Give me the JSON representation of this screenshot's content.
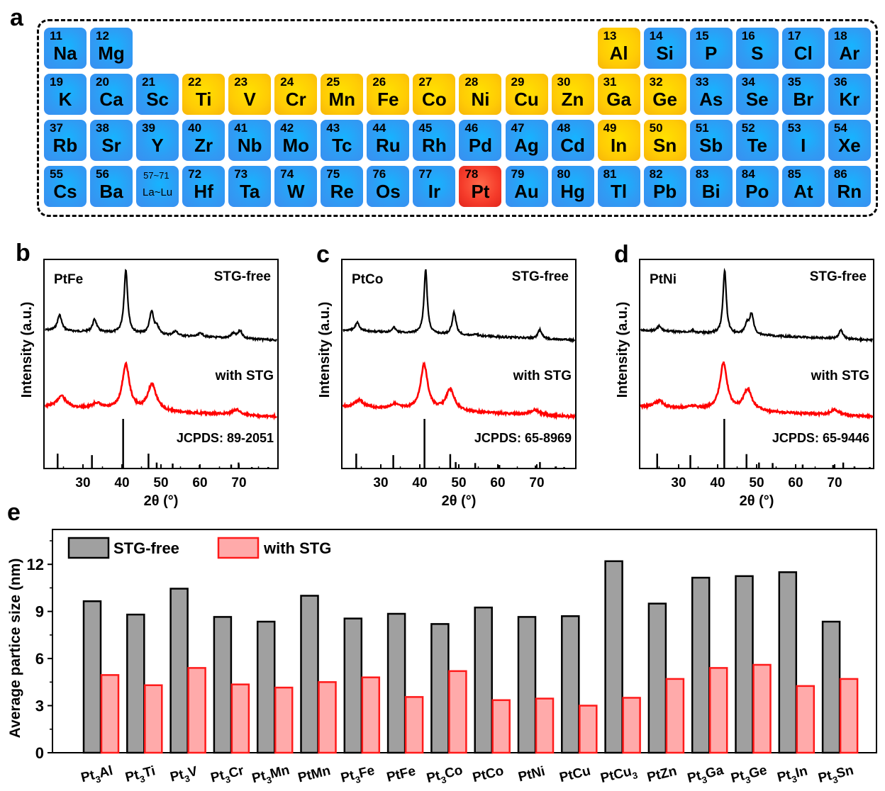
{
  "panels": {
    "a": "a",
    "b": "b",
    "c": "c",
    "d": "d",
    "e": "e"
  },
  "periodic_table": {
    "elements": [
      {
        "n": "11",
        "s": "Na",
        "c": "blue",
        "r": 0,
        "col": 0
      },
      {
        "n": "12",
        "s": "Mg",
        "c": "blue",
        "r": 0,
        "col": 1
      },
      {
        "n": "13",
        "s": "Al",
        "c": "gold",
        "r": 0,
        "col": 12
      },
      {
        "n": "14",
        "s": "Si",
        "c": "blue",
        "r": 0,
        "col": 13
      },
      {
        "n": "15",
        "s": "P",
        "c": "blue",
        "r": 0,
        "col": 14
      },
      {
        "n": "16",
        "s": "S",
        "c": "blue",
        "r": 0,
        "col": 15
      },
      {
        "n": "17",
        "s": "Cl",
        "c": "blue",
        "r": 0,
        "col": 16
      },
      {
        "n": "18",
        "s": "Ar",
        "c": "blue",
        "r": 0,
        "col": 17
      },
      {
        "n": "19",
        "s": "K",
        "c": "blue",
        "r": 1,
        "col": 0
      },
      {
        "n": "20",
        "s": "Ca",
        "c": "blue",
        "r": 1,
        "col": 1
      },
      {
        "n": "21",
        "s": "Sc",
        "c": "blue",
        "r": 1,
        "col": 2
      },
      {
        "n": "22",
        "s": "Ti",
        "c": "gold",
        "r": 1,
        "col": 3
      },
      {
        "n": "23",
        "s": "V",
        "c": "gold",
        "r": 1,
        "col": 4
      },
      {
        "n": "24",
        "s": "Cr",
        "c": "gold",
        "r": 1,
        "col": 5
      },
      {
        "n": "25",
        "s": "Mn",
        "c": "gold",
        "r": 1,
        "col": 6
      },
      {
        "n": "26",
        "s": "Fe",
        "c": "gold",
        "r": 1,
        "col": 7
      },
      {
        "n": "27",
        "s": "Co",
        "c": "gold",
        "r": 1,
        "col": 8
      },
      {
        "n": "28",
        "s": "Ni",
        "c": "gold",
        "r": 1,
        "col": 9
      },
      {
        "n": "29",
        "s": "Cu",
        "c": "gold",
        "r": 1,
        "col": 10
      },
      {
        "n": "30",
        "s": "Zn",
        "c": "gold",
        "r": 1,
        "col": 11
      },
      {
        "n": "31",
        "s": "Ga",
        "c": "gold",
        "r": 1,
        "col": 12
      },
      {
        "n": "32",
        "s": "Ge",
        "c": "gold",
        "r": 1,
        "col": 13
      },
      {
        "n": "33",
        "s": "As",
        "c": "blue",
        "r": 1,
        "col": 14
      },
      {
        "n": "34",
        "s": "Se",
        "c": "blue",
        "r": 1,
        "col": 15
      },
      {
        "n": "35",
        "s": "Br",
        "c": "blue",
        "r": 1,
        "col": 16
      },
      {
        "n": "36",
        "s": "Kr",
        "c": "blue",
        "r": 1,
        "col": 17
      },
      {
        "n": "37",
        "s": "Rb",
        "c": "blue",
        "r": 2,
        "col": 0
      },
      {
        "n": "38",
        "s": "Sr",
        "c": "blue",
        "r": 2,
        "col": 1
      },
      {
        "n": "39",
        "s": "Y",
        "c": "blue",
        "r": 2,
        "col": 2
      },
      {
        "n": "40",
        "s": "Zr",
        "c": "blue",
        "r": 2,
        "col": 3
      },
      {
        "n": "41",
        "s": "Nb",
        "c": "blue",
        "r": 2,
        "col": 4
      },
      {
        "n": "42",
        "s": "Mo",
        "c": "blue",
        "r": 2,
        "col": 5
      },
      {
        "n": "43",
        "s": "Tc",
        "c": "blue",
        "r": 2,
        "col": 6
      },
      {
        "n": "44",
        "s": "Ru",
        "c": "blue",
        "r": 2,
        "col": 7
      },
      {
        "n": "45",
        "s": "Rh",
        "c": "blue",
        "r": 2,
        "col": 8
      },
      {
        "n": "46",
        "s": "Pd",
        "c": "blue",
        "r": 2,
        "col": 9
      },
      {
        "n": "47",
        "s": "Ag",
        "c": "blue",
        "r": 2,
        "col": 10
      },
      {
        "n": "48",
        "s": "Cd",
        "c": "blue",
        "r": 2,
        "col": 11
      },
      {
        "n": "49",
        "s": "In",
        "c": "gold",
        "r": 2,
        "col": 12
      },
      {
        "n": "50",
        "s": "Sn",
        "c": "gold",
        "r": 2,
        "col": 13
      },
      {
        "n": "51",
        "s": "Sb",
        "c": "blue",
        "r": 2,
        "col": 14
      },
      {
        "n": "52",
        "s": "Te",
        "c": "blue",
        "r": 2,
        "col": 15
      },
      {
        "n": "53",
        "s": "I",
        "c": "blue",
        "r": 2,
        "col": 16
      },
      {
        "n": "54",
        "s": "Xe",
        "c": "blue",
        "r": 2,
        "col": 17
      },
      {
        "n": "55",
        "s": "Cs",
        "c": "blue",
        "r": 3,
        "col": 0
      },
      {
        "n": "56",
        "s": "Ba",
        "c": "blue",
        "r": 3,
        "col": 1
      },
      {
        "n": "57~71",
        "s": "La~Lu",
        "c": "blue",
        "r": 3,
        "col": 2,
        "small": true
      },
      {
        "n": "72",
        "s": "Hf",
        "c": "blue",
        "r": 3,
        "col": 3
      },
      {
        "n": "73",
        "s": "Ta",
        "c": "blue",
        "r": 3,
        "col": 4
      },
      {
        "n": "74",
        "s": "W",
        "c": "blue",
        "r": 3,
        "col": 5
      },
      {
        "n": "75",
        "s": "Re",
        "c": "blue",
        "r": 3,
        "col": 6
      },
      {
        "n": "76",
        "s": "Os",
        "c": "blue",
        "r": 3,
        "col": 7
      },
      {
        "n": "77",
        "s": "Ir",
        "c": "blue",
        "r": 3,
        "col": 8
      },
      {
        "n": "78",
        "s": "Pt",
        "c": "red",
        "r": 3,
        "col": 9
      },
      {
        "n": "79",
        "s": "Au",
        "c": "blue",
        "r": 3,
        "col": 10
      },
      {
        "n": "80",
        "s": "Hg",
        "c": "blue",
        "r": 3,
        "col": 11
      },
      {
        "n": "81",
        "s": "Tl",
        "c": "blue",
        "r": 3,
        "col": 12
      },
      {
        "n": "82",
        "s": "Pb",
        "c": "blue",
        "r": 3,
        "col": 13
      },
      {
        "n": "83",
        "s": "Bi",
        "c": "blue",
        "r": 3,
        "col": 14
      },
      {
        "n": "84",
        "s": "Po",
        "c": "blue",
        "r": 3,
        "col": 15
      },
      {
        "n": "85",
        "s": "At",
        "c": "blue",
        "r": 3,
        "col": 16
      },
      {
        "n": "86",
        "s": "Rn",
        "c": "blue",
        "r": 3,
        "col": 17
      }
    ]
  },
  "colors": {
    "stg_free_line": "#000000",
    "with_stg_line": "#ff0000",
    "bar_gray": "#a0a0a0",
    "bar_pink": "#ffaaaa",
    "bar_red_edge": "#ff1a1a"
  },
  "chart_data": [
    {
      "panel": "b",
      "type": "line",
      "sample": "PtFe",
      "xlabel": "2θ (°)",
      "ylabel": "Intensity (a.u.)",
      "xlim": [
        20,
        80
      ],
      "xticks": [
        30,
        40,
        50,
        60,
        70
      ],
      "series": [
        {
          "name": "STG-free",
          "peaks": [
            [
              24,
              0.25
            ],
            [
              33,
              0.2
            ],
            [
              41,
              1.0
            ],
            [
              47.6,
              0.35
            ],
            [
              49,
              0.1
            ],
            [
              53.7,
              0.07
            ],
            [
              60.2,
              0.06
            ],
            [
              68.5,
              0.07
            ],
            [
              70.3,
              0.12
            ]
          ]
        },
        {
          "name": "with STG",
          "peaks": [
            [
              24.5,
              0.22
            ],
            [
              33.5,
              0.1
            ],
            [
              41,
              0.85
            ],
            [
              47.7,
              0.5
            ],
            [
              69.3,
              0.1
            ]
          ]
        }
      ],
      "reference": {
        "label": "JCPDS: 89-2051",
        "sticks": [
          [
            23.5,
            0.3
          ],
          [
            32.3,
            0.27
          ],
          [
            40.3,
            1.0
          ],
          [
            46.8,
            0.3
          ],
          [
            48.9,
            0.12
          ],
          [
            53,
            0.1
          ],
          [
            59.9,
            0.07
          ],
          [
            68,
            0.08
          ],
          [
            69.9,
            0.12
          ],
          [
            73.3,
            0.03
          ],
          [
            77.5,
            0.03
          ]
        ]
      },
      "labels": {
        "stg_free": "STG-free",
        "with_stg": "with STG"
      }
    },
    {
      "panel": "c",
      "type": "line",
      "sample": "PtCo",
      "xlabel": "2θ (°)",
      "ylabel": "Intensity (a.u.)",
      "xlim": [
        20,
        80
      ],
      "xticks": [
        30,
        40,
        50,
        60,
        70
      ],
      "series": [
        {
          "name": "STG-free",
          "peaks": [
            [
              24,
              0.14
            ],
            [
              33.3,
              0.08
            ],
            [
              41.5,
              1.0
            ],
            [
              48.8,
              0.35
            ],
            [
              54.3,
              0.03
            ],
            [
              70.8,
              0.14
            ]
          ]
        },
        {
          "name": "with STG",
          "peaks": [
            [
              24.5,
              0.14
            ],
            [
              33.5,
              0.08
            ],
            [
              41.1,
              0.85
            ],
            [
              47.8,
              0.4
            ],
            [
              69.5,
              0.1
            ]
          ]
        }
      ],
      "reference": {
        "label": "JCPDS: 65-8969",
        "sticks": [
          [
            23.7,
            0.3
          ],
          [
            33.2,
            0.27
          ],
          [
            41.2,
            1.0
          ],
          [
            47.8,
            0.29
          ],
          [
            49.2,
            0.13
          ],
          [
            54.2,
            0.11
          ],
          [
            60.4,
            0.07
          ],
          [
            69.7,
            0.06
          ],
          [
            70.8,
            0.13
          ],
          [
            74.8,
            0.04
          ],
          [
            77,
            0.03
          ]
        ]
      },
      "labels": {
        "stg_free": "STG-free",
        "with_stg": "with STG"
      }
    },
    {
      "panel": "d",
      "type": "line",
      "sample": "PtNi",
      "xlabel": "2θ (°)",
      "ylabel": "Intensity (a.u.)",
      "xlim": [
        20,
        80
      ],
      "xticks": [
        30,
        40,
        50,
        60,
        70
      ],
      "series": [
        {
          "name": "STG-free",
          "peaks": [
            [
              25,
              0.08
            ],
            [
              33.5,
              0.03
            ],
            [
              41.8,
              1.0
            ],
            [
              47.5,
              0.15
            ],
            [
              48.7,
              0.32
            ],
            [
              71.6,
              0.14
            ]
          ]
        },
        {
          "name": "with STG",
          "peaks": [
            [
              25,
              0.13
            ],
            [
              33.5,
              0.05
            ],
            [
              41.5,
              0.88
            ],
            [
              47.7,
              0.4
            ],
            [
              70,
              0.1
            ]
          ]
        }
      ],
      "reference": {
        "label": "JCPDS: 65-9446",
        "sticks": [
          [
            24.5,
            0.3
          ],
          [
            33,
            0.27
          ],
          [
            41.7,
            1.0
          ],
          [
            47.4,
            0.29
          ],
          [
            50.6,
            0.12
          ],
          [
            54.1,
            0.11
          ],
          [
            61.8,
            0.08
          ],
          [
            69.6,
            0.07
          ],
          [
            72.2,
            0.12
          ],
          [
            75.1,
            0.04
          ],
          [
            79,
            0.03
          ]
        ]
      },
      "labels": {
        "stg_free": "STG-free",
        "with_stg": "with STG"
      }
    },
    {
      "panel": "e",
      "type": "bar",
      "ylabel": "Average partice size (nm)",
      "ylim": [
        0,
        14.2
      ],
      "yticks": [
        0,
        3,
        6,
        9,
        12
      ],
      "categories": [
        {
          "base": "Pt",
          "sub": "3",
          "tail": "Al"
        },
        {
          "base": "Pt",
          "sub": "3",
          "tail": "Ti"
        },
        {
          "base": "Pt",
          "sub": "3",
          "tail": "V"
        },
        {
          "base": "Pt",
          "sub": "3",
          "tail": "Cr"
        },
        {
          "base": "Pt",
          "sub": "3",
          "tail": "Mn"
        },
        {
          "base": "PtMn",
          "sub": "",
          "tail": ""
        },
        {
          "base": "Pt",
          "sub": "3",
          "tail": "Fe"
        },
        {
          "base": "PtFe",
          "sub": "",
          "tail": ""
        },
        {
          "base": "Pt",
          "sub": "3",
          "tail": "Co"
        },
        {
          "base": "PtCo",
          "sub": "",
          "tail": ""
        },
        {
          "base": "PtNi",
          "sub": "",
          "tail": ""
        },
        {
          "base": "PtCu",
          "sub": "",
          "tail": ""
        },
        {
          "base": "PtCu",
          "sub": "3",
          "tail": ""
        },
        {
          "base": "PtZn",
          "sub": "",
          "tail": ""
        },
        {
          "base": "Pt",
          "sub": "3",
          "tail": "Ga"
        },
        {
          "base": "Pt",
          "sub": "3",
          "tail": "Ge"
        },
        {
          "base": "Pt",
          "sub": "3",
          "tail": "In"
        },
        {
          "base": "Pt",
          "sub": "3",
          "tail": "Sn"
        }
      ],
      "series": [
        {
          "name": "STG-free",
          "values": [
            9.65,
            8.8,
            10.45,
            8.65,
            8.35,
            10.0,
            8.55,
            8.85,
            8.2,
            9.25,
            8.65,
            8.7,
            12.2,
            9.5,
            11.15,
            11.25,
            11.5,
            8.35
          ]
        },
        {
          "name": "with STG",
          "values": [
            4.95,
            4.3,
            5.4,
            4.35,
            4.15,
            4.5,
            4.8,
            3.55,
            5.2,
            3.35,
            3.45,
            3.0,
            3.5,
            4.7,
            5.4,
            5.6,
            4.25,
            4.7
          ]
        }
      ],
      "legend": {
        "position": "top-left",
        "items": [
          "STG-free",
          "with STG"
        ]
      }
    }
  ]
}
